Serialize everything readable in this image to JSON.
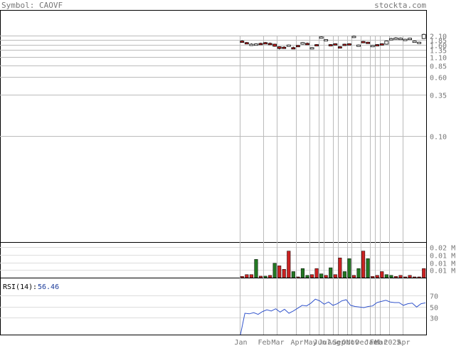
{
  "header": {
    "symbol_label": "Symbol: CAOVF",
    "site": "stockta.com"
  },
  "colors": {
    "up": "#cc2222",
    "down": "#227722",
    "line": "#3355cc",
    "grid": "#bbbbbb",
    "frame": "#000000",
    "text": "#777777"
  },
  "chart_data": [
    {
      "type": "candlestick",
      "title": "",
      "y_scale": "log",
      "y_ticks": [
        "2.10",
        "1.85",
        "1.60",
        "1.35",
        "1.10",
        "0.85",
        "0.60",
        "0.35",
        "0.10"
      ],
      "y_tick_values": [
        2.1,
        1.85,
        1.6,
        1.35,
        1.1,
        0.85,
        0.6,
        0.35,
        0.1
      ],
      "ylim": [
        0.05,
        2.4
      ],
      "x_months": [
        "Jan",
        "Feb",
        "Mar",
        "Apr",
        "May",
        "Jun",
        "Jul",
        "Aug",
        "Sep",
        "Oct",
        "Nov",
        "Dec",
        "Jan",
        "Feb",
        "Mar",
        "2025",
        "Apr"
      ],
      "x_month_index": [
        0,
        5,
        8,
        12,
        15,
        17,
        18,
        20,
        21,
        23,
        24,
        26,
        28,
        29,
        30,
        32,
        35
      ],
      "candles": [
        {
          "o": 1.78,
          "h": 1.82,
          "l": 1.74,
          "c": 1.76
        },
        {
          "o": 1.7,
          "h": 1.73,
          "l": 1.64,
          "c": 1.66
        },
        {
          "o": 1.6,
          "h": 1.66,
          "l": 1.57,
          "c": 1.62
        },
        {
          "o": 1.62,
          "h": 1.66,
          "l": 1.6,
          "c": 1.63
        },
        {
          "o": 1.66,
          "h": 1.69,
          "l": 1.62,
          "c": 1.64
        },
        {
          "o": 1.7,
          "h": 1.73,
          "l": 1.64,
          "c": 1.67
        },
        {
          "o": 1.66,
          "h": 1.7,
          "l": 1.6,
          "c": 1.63
        },
        {
          "o": 1.62,
          "h": 1.64,
          "l": 1.5,
          "c": 1.52
        },
        {
          "o": 1.5,
          "h": 1.52,
          "l": 1.38,
          "c": 1.42
        },
        {
          "o": 1.48,
          "h": 1.52,
          "l": 1.44,
          "c": 1.46
        },
        {
          "o": 1.55,
          "h": 1.6,
          "l": 1.52,
          "c": 1.58
        },
        {
          "o": 1.46,
          "h": 1.5,
          "l": 1.42,
          "c": 1.44
        },
        {
          "o": 1.56,
          "h": 1.58,
          "l": 1.52,
          "c": 1.55
        },
        {
          "o": 1.62,
          "h": 1.72,
          "l": 1.6,
          "c": 1.7
        },
        {
          "o": 1.66,
          "h": 1.7,
          "l": 1.62,
          "c": 1.64
        },
        {
          "o": 1.44,
          "h": 1.48,
          "l": 1.42,
          "c": 1.46
        },
        {
          "o": 1.6,
          "h": 1.62,
          "l": 1.56,
          "c": 1.58
        },
        {
          "o": 2.0,
          "h": 2.05,
          "l": 1.96,
          "c": 2.02
        },
        {
          "o": 1.84,
          "h": 1.88,
          "l": 1.8,
          "c": 1.86
        },
        {
          "o": 1.6,
          "h": 1.62,
          "l": 1.56,
          "c": 1.58
        },
        {
          "o": 1.64,
          "h": 1.66,
          "l": 1.6,
          "c": 1.62
        },
        {
          "o": 1.5,
          "h": 1.52,
          "l": 1.46,
          "c": 1.48
        },
        {
          "o": 1.62,
          "h": 1.64,
          "l": 1.58,
          "c": 1.6
        },
        {
          "o": 1.64,
          "h": 1.66,
          "l": 1.6,
          "c": 1.62
        },
        {
          "o": 2.06,
          "h": 2.1,
          "l": 2.02,
          "c": 2.06
        },
        {
          "o": 1.56,
          "h": 1.6,
          "l": 1.54,
          "c": 1.58
        },
        {
          "o": 1.76,
          "h": 1.78,
          "l": 1.7,
          "c": 1.72
        },
        {
          "o": 1.72,
          "h": 1.74,
          "l": 1.66,
          "c": 1.68
        },
        {
          "o": 1.56,
          "h": 1.58,
          "l": 1.54,
          "c": 1.56
        },
        {
          "o": 1.6,
          "h": 1.62,
          "l": 1.56,
          "c": 1.58
        },
        {
          "o": 1.64,
          "h": 1.66,
          "l": 1.6,
          "c": 1.62
        },
        {
          "o": 1.62,
          "h": 1.8,
          "l": 1.6,
          "c": 1.78
        },
        {
          "o": 1.92,
          "h": 1.96,
          "l": 1.88,
          "c": 1.92
        },
        {
          "o": 1.96,
          "h": 2.0,
          "l": 1.92,
          "c": 1.96
        },
        {
          "o": 1.94,
          "h": 1.98,
          "l": 1.9,
          "c": 1.94
        },
        {
          "o": 1.88,
          "h": 1.9,
          "l": 1.86,
          "c": 1.88
        },
        {
          "o": 1.94,
          "h": 1.96,
          "l": 1.9,
          "c": 1.94
        },
        {
          "o": 1.76,
          "h": 1.8,
          "l": 1.74,
          "c": 1.78
        },
        {
          "o": 1.7,
          "h": 1.74,
          "l": 1.68,
          "c": 1.72
        },
        {
          "o": 1.92,
          "h": 2.22,
          "l": 1.9,
          "c": 2.18
        }
      ]
    },
    {
      "type": "bar",
      "title": "",
      "y_ticks": [
        "0.02 M",
        "0.01 M",
        "0.01 M",
        "0.01 M"
      ],
      "y_tick_values": [
        0.02,
        0.015,
        0.01,
        0.005
      ],
      "ylim": [
        0,
        0.022
      ],
      "bars": [
        {
          "v": 0.0008,
          "s": "up"
        },
        {
          "v": 0.002,
          "s": "up"
        },
        {
          "v": 0.002,
          "s": "up"
        },
        {
          "v": 0.012,
          "s": "down"
        },
        {
          "v": 0.001,
          "s": "up"
        },
        {
          "v": 0.001,
          "s": "down"
        },
        {
          "v": 0.0015,
          "s": "up"
        },
        {
          "v": 0.0095,
          "s": "down"
        },
        {
          "v": 0.0078,
          "s": "up"
        },
        {
          "v": 0.0055,
          "s": "up"
        },
        {
          "v": 0.0175,
          "s": "up"
        },
        {
          "v": 0.004,
          "s": "down"
        },
        {
          "v": 0.0005,
          "s": "up"
        },
        {
          "v": 0.006,
          "s": "down"
        },
        {
          "v": 0.0015,
          "s": "down"
        },
        {
          "v": 0.002,
          "s": "up"
        },
        {
          "v": 0.006,
          "s": "up"
        },
        {
          "v": 0.0025,
          "s": "down"
        },
        {
          "v": 0.0015,
          "s": "up"
        },
        {
          "v": 0.0065,
          "s": "down"
        },
        {
          "v": 0.002,
          "s": "up"
        },
        {
          "v": 0.013,
          "s": "up"
        },
        {
          "v": 0.004,
          "s": "down"
        },
        {
          "v": 0.0125,
          "s": "down"
        },
        {
          "v": 0.0015,
          "s": "up"
        },
        {
          "v": 0.006,
          "s": "down"
        },
        {
          "v": 0.0175,
          "s": "up"
        },
        {
          "v": 0.0125,
          "s": "down"
        },
        {
          "v": 0.0008,
          "s": "up"
        },
        {
          "v": 0.0015,
          "s": "up"
        },
        {
          "v": 0.004,
          "s": "up"
        },
        {
          "v": 0.002,
          "s": "down"
        },
        {
          "v": 0.0015,
          "s": "down"
        },
        {
          "v": 0.0008,
          "s": "up"
        },
        {
          "v": 0.0015,
          "s": "up"
        },
        {
          "v": 0.0005,
          "s": "up"
        },
        {
          "v": 0.0015,
          "s": "up"
        },
        {
          "v": 0.0005,
          "s": "up"
        },
        {
          "v": 0.0005,
          "s": "up"
        },
        {
          "v": 0.006,
          "s": "up"
        }
      ]
    },
    {
      "type": "line",
      "title": "RSI(14)",
      "value_label": "56.46",
      "y_ticks": [
        "70",
        "50",
        "30"
      ],
      "y_tick_values": [
        70,
        50,
        30
      ],
      "ylim": [
        0,
        100
      ],
      "values": [
        0,
        38,
        37,
        39,
        36,
        41,
        44,
        42,
        46,
        40,
        45,
        38,
        42,
        47,
        52,
        51,
        56,
        63,
        60,
        54,
        58,
        52,
        55,
        60,
        62,
        52,
        50,
        49,
        48,
        50,
        51,
        57,
        59,
        61,
        58,
        57,
        57,
        52,
        55,
        56,
        49,
        55,
        56.46
      ]
    }
  ]
}
